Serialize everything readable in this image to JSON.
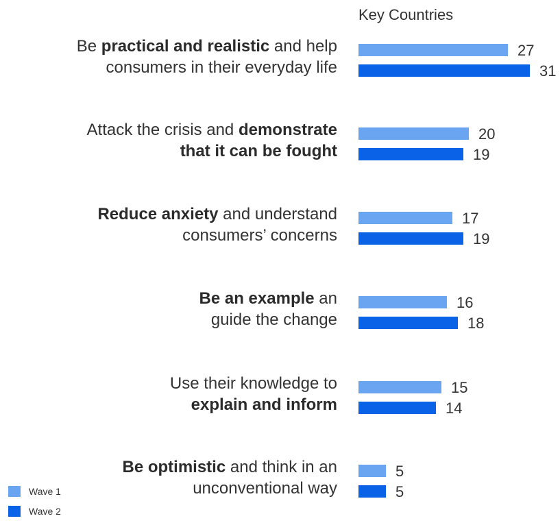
{
  "chart_data": {
    "type": "bar",
    "orientation": "horizontal",
    "title": "Key Countries",
    "categories": [
      "Be practical and realistic and help consumers in their everyday life",
      "Attack the crisis and demonstrate that it can be fought",
      "Reduce anxiety and understand consumers' concerns",
      "Be an example an guide the change",
      "Use their knowledge to explain and inform",
      "Be optimistic and think in an unconventional way"
    ],
    "category_labels": [
      {
        "lines": [
          [
            {
              "t": "Be ",
              "b": false
            },
            {
              "t": "practical and realistic",
              "b": true
            },
            {
              "t": " and help",
              "b": false
            }
          ],
          [
            {
              "t": "consumers in their everyday life",
              "b": false
            }
          ]
        ]
      },
      {
        "lines": [
          [
            {
              "t": "Attack the crisis and ",
              "b": false
            },
            {
              "t": "demonstrate",
              "b": true
            }
          ],
          [
            {
              "t": "that it can be fought",
              "b": true
            }
          ]
        ]
      },
      {
        "lines": [
          [
            {
              "t": "Reduce anxiety",
              "b": true
            },
            {
              "t": " and understand",
              "b": false
            }
          ],
          [
            {
              "t": "consumers’ concerns",
              "b": false
            }
          ]
        ]
      },
      {
        "lines": [
          [
            {
              "t": "Be an example",
              "b": true
            },
            {
              "t": " an",
              "b": false
            }
          ],
          [
            {
              "t": "guide the change",
              "b": false
            }
          ]
        ]
      },
      {
        "lines": [
          [
            {
              "t": "Use their knowledge to",
              "b": false
            }
          ],
          [
            {
              "t": "explain and inform",
              "b": true
            }
          ]
        ]
      },
      {
        "lines": [
          [
            {
              "t": "Be optimistic",
              "b": true
            },
            {
              "t": " and think in an",
              "b": false
            }
          ],
          [
            {
              "t": "unconventional way",
              "b": false
            }
          ]
        ]
      }
    ],
    "series": [
      {
        "name": "Wave 1",
        "color": "#6aa5f2",
        "values": [
          27,
          20,
          17,
          16,
          15,
          5
        ]
      },
      {
        "name": "Wave 2",
        "color": "#0a63e6",
        "values": [
          31,
          19,
          19,
          18,
          14,
          5
        ]
      }
    ],
    "xlim": [
      0,
      31
    ],
    "grid": false,
    "axes_visible": false,
    "legend_position": "bottom-left"
  }
}
